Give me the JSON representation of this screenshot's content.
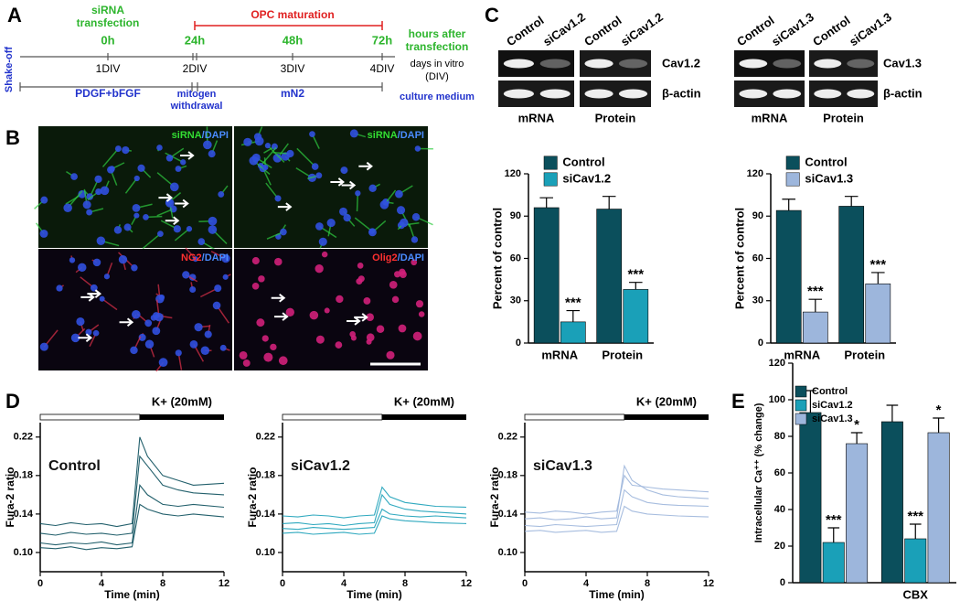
{
  "panels": [
    "A",
    "B",
    "C",
    "D",
    "E"
  ],
  "timeline": {
    "transfection": [
      "siRNA",
      "transfection"
    ],
    "maturation": "OPC maturation",
    "hours": [
      "0h",
      "24h",
      "48h",
      "72h"
    ],
    "hours_caption": [
      "hours after",
      "transfection"
    ],
    "start": "Shake-off",
    "days": [
      "1DIV",
      "2DIV",
      "3DIV",
      "4DIV"
    ],
    "days_caption": [
      "days in vitro",
      "(DIV)"
    ],
    "media": [
      [
        "PDGF+bFGF"
      ],
      [
        "mitogen",
        "withdrawal"
      ],
      [
        "mN2"
      ]
    ],
    "media_caption": "culture medium"
  },
  "images": [
    [
      {
        "text": "siRNA",
        "color": "#33dd33"
      },
      {
        "text": "/DAPI",
        "color": "#4a8cff"
      }
    ],
    [
      {
        "text": "siRNA",
        "color": "#33dd33"
      },
      {
        "text": "/DAPI",
        "color": "#4a8cff"
      }
    ],
    [
      {
        "text": "NG2",
        "color": "#ff3030"
      },
      {
        "text": "/DAPI",
        "color": "#4a8cff"
      }
    ],
    [
      {
        "text": "Olig2",
        "color": "#ff3030"
      },
      {
        "text": "/DAPI",
        "color": "#4a8cff"
      }
    ]
  ],
  "blots": [
    {
      "columns": [
        "Control",
        "siCav1.2",
        "Control",
        "siCav1.2"
      ],
      "rows": [
        "Cav1.2",
        "β-actin"
      ],
      "groups": [
        "mRNA",
        "Protein"
      ]
    },
    {
      "columns": [
        "Control",
        "siCav1.3",
        "Control",
        "siCav1.3"
      ],
      "rows": [
        "Cav1.3",
        "β-actin"
      ],
      "groups": [
        "mRNA",
        "Protein"
      ]
    }
  ],
  "chart_data": [
    {
      "type": "bar",
      "ylabel": "Percent of control",
      "categories": [
        "mRNA",
        "Protein"
      ],
      "series": [
        {
          "name": "Control",
          "color": "#0b4f5c",
          "values": [
            96,
            95
          ],
          "errors": [
            7,
            9
          ]
        },
        {
          "name": "siCav1.2",
          "color": "#1aa0b8",
          "values": [
            15,
            38
          ],
          "errors": [
            8,
            5
          ],
          "significance": [
            "***",
            "***"
          ]
        }
      ],
      "ylim": [
        0,
        120
      ],
      "yticks": [
        0,
        30,
        60,
        90,
        120
      ],
      "legend": "top-left"
    },
    {
      "type": "bar",
      "ylabel": "Percent of control",
      "categories": [
        "mRNA",
        "Protein"
      ],
      "series": [
        {
          "name": "Control",
          "color": "#0b4f5c",
          "values": [
            94,
            97
          ],
          "errors": [
            8,
            7
          ]
        },
        {
          "name": "siCav1.3",
          "color": "#9db6dc",
          "values": [
            22,
            42
          ],
          "errors": [
            9,
            8
          ],
          "significance": [
            "***",
            "***"
          ]
        }
      ],
      "ylim": [
        0,
        120
      ],
      "yticks": [
        0,
        30,
        60,
        90,
        120
      ],
      "legend": "top-left"
    },
    {
      "type": "line",
      "title": "Control",
      "stimulus": "K+ (20mM)",
      "stimulus_onset": 6.5,
      "color": "#0b4f5c",
      "xlabel": "Time (min)",
      "ylabel": "Fura-2 ratio",
      "x": [
        0,
        1,
        2,
        3,
        4,
        5,
        6,
        6.5,
        7,
        8,
        9,
        10,
        12
      ],
      "series": [
        {
          "values": [
            0.12,
            0.118,
            0.121,
            0.119,
            0.12,
            0.118,
            0.12,
            0.2,
            0.19,
            0.17,
            0.165,
            0.162,
            0.16
          ]
        },
        {
          "values": [
            0.11,
            0.108,
            0.11,
            0.109,
            0.111,
            0.108,
            0.11,
            0.17,
            0.16,
            0.15,
            0.148,
            0.15,
            0.147
          ]
        },
        {
          "values": [
            0.13,
            0.128,
            0.131,
            0.129,
            0.13,
            0.127,
            0.13,
            0.22,
            0.2,
            0.18,
            0.175,
            0.17,
            0.172
          ]
        },
        {
          "values": [
            0.105,
            0.104,
            0.106,
            0.103,
            0.105,
            0.104,
            0.106,
            0.15,
            0.145,
            0.14,
            0.138,
            0.14,
            0.137
          ]
        }
      ],
      "xlim": [
        0,
        12
      ],
      "xticks": [
        0,
        4,
        8,
        12
      ],
      "ylim": [
        0.08,
        0.235
      ],
      "yticks": [
        {
          "value": 0.1,
          "label": "0.10"
        },
        0.14,
        0.18,
        0.22
      ]
    },
    {
      "type": "line",
      "title": "siCav1.2",
      "stimulus": "K+ (20mM)",
      "stimulus_onset": 6.5,
      "color": "#1aa0b8",
      "xlabel": "Time (min)",
      "ylabel": "Fura-2 ratio",
      "x": [
        0,
        1,
        2,
        3,
        4,
        5,
        6,
        6.5,
        7,
        8,
        9,
        10,
        12
      ],
      "series": [
        {
          "values": [
            0.13,
            0.131,
            0.129,
            0.13,
            0.128,
            0.13,
            0.131,
            0.16,
            0.15,
            0.145,
            0.143,
            0.142,
            0.14
          ]
        },
        {
          "values": [
            0.125,
            0.124,
            0.126,
            0.125,
            0.124,
            0.125,
            0.126,
            0.145,
            0.14,
            0.138,
            0.137,
            0.138,
            0.136
          ]
        },
        {
          "values": [
            0.138,
            0.137,
            0.139,
            0.138,
            0.136,
            0.138,
            0.139,
            0.168,
            0.158,
            0.152,
            0.15,
            0.148,
            0.147
          ]
        },
        {
          "values": [
            0.12,
            0.121,
            0.119,
            0.12,
            0.121,
            0.119,
            0.12,
            0.138,
            0.135,
            0.133,
            0.132,
            0.131,
            0.13
          ]
        }
      ],
      "xlim": [
        0,
        12
      ],
      "xticks": [
        0,
        4,
        8,
        12
      ],
      "ylim": [
        0.08,
        0.235
      ],
      "yticks": [
        {
          "value": 0.1,
          "label": "0.10"
        },
        0.14,
        0.18,
        0.22
      ]
    },
    {
      "type": "line",
      "title": "siCav1.3",
      "stimulus": "K+ (20mM)",
      "stimulus_onset": 6.5,
      "color": "#9db6dc",
      "xlabel": "Time (min)",
      "ylabel": "Fura-2 ratio",
      "x": [
        0,
        1,
        2,
        3,
        4,
        5,
        6,
        6.5,
        7,
        8,
        9,
        10,
        12
      ],
      "series": [
        {
          "values": [
            0.135,
            0.136,
            0.134,
            0.135,
            0.137,
            0.135,
            0.136,
            0.19,
            0.175,
            0.165,
            0.16,
            0.158,
            0.156
          ]
        },
        {
          "values": [
            0.128,
            0.127,
            0.129,
            0.128,
            0.127,
            0.128,
            0.129,
            0.165,
            0.158,
            0.152,
            0.15,
            0.149,
            0.148
          ]
        },
        {
          "values": [
            0.142,
            0.141,
            0.143,
            0.142,
            0.14,
            0.142,
            0.143,
            0.18,
            0.17,
            0.168,
            0.166,
            0.165,
            0.163
          ]
        },
        {
          "values": [
            0.122,
            0.123,
            0.121,
            0.122,
            0.123,
            0.121,
            0.122,
            0.148,
            0.143,
            0.14,
            0.139,
            0.138,
            0.137
          ]
        }
      ],
      "xlim": [
        0,
        12
      ],
      "xticks": [
        0,
        4,
        8,
        12
      ],
      "ylim": [
        0.08,
        0.235
      ],
      "yticks": [
        {
          "value": 0.1,
          "label": "0.10"
        },
        0.14,
        0.18,
        0.22
      ]
    },
    {
      "type": "bar",
      "ylabel": "Intracellular Ca⁺⁺ (% change)",
      "categories": [
        null,
        "CBX"
      ],
      "series": [
        {
          "name": "Control",
          "color": "#0b4f5c",
          "values": [
            93,
            88
          ],
          "errors": [
            12,
            9
          ]
        },
        {
          "name": "siCav1.2",
          "color": "#1aa0b8",
          "values": [
            22,
            24
          ],
          "errors": [
            8,
            8
          ],
          "significance": [
            "***",
            "***"
          ]
        },
        {
          "name": "siCav1.3",
          "color": "#9db6dc",
          "values": [
            76,
            82
          ],
          "errors": [
            6,
            8
          ],
          "significance": [
            "*",
            "*"
          ]
        }
      ],
      "ylim": [
        0,
        120
      ],
      "yticks": [
        0,
        20,
        40,
        60,
        80,
        100,
        120
      ],
      "legend": "top-left"
    }
  ]
}
